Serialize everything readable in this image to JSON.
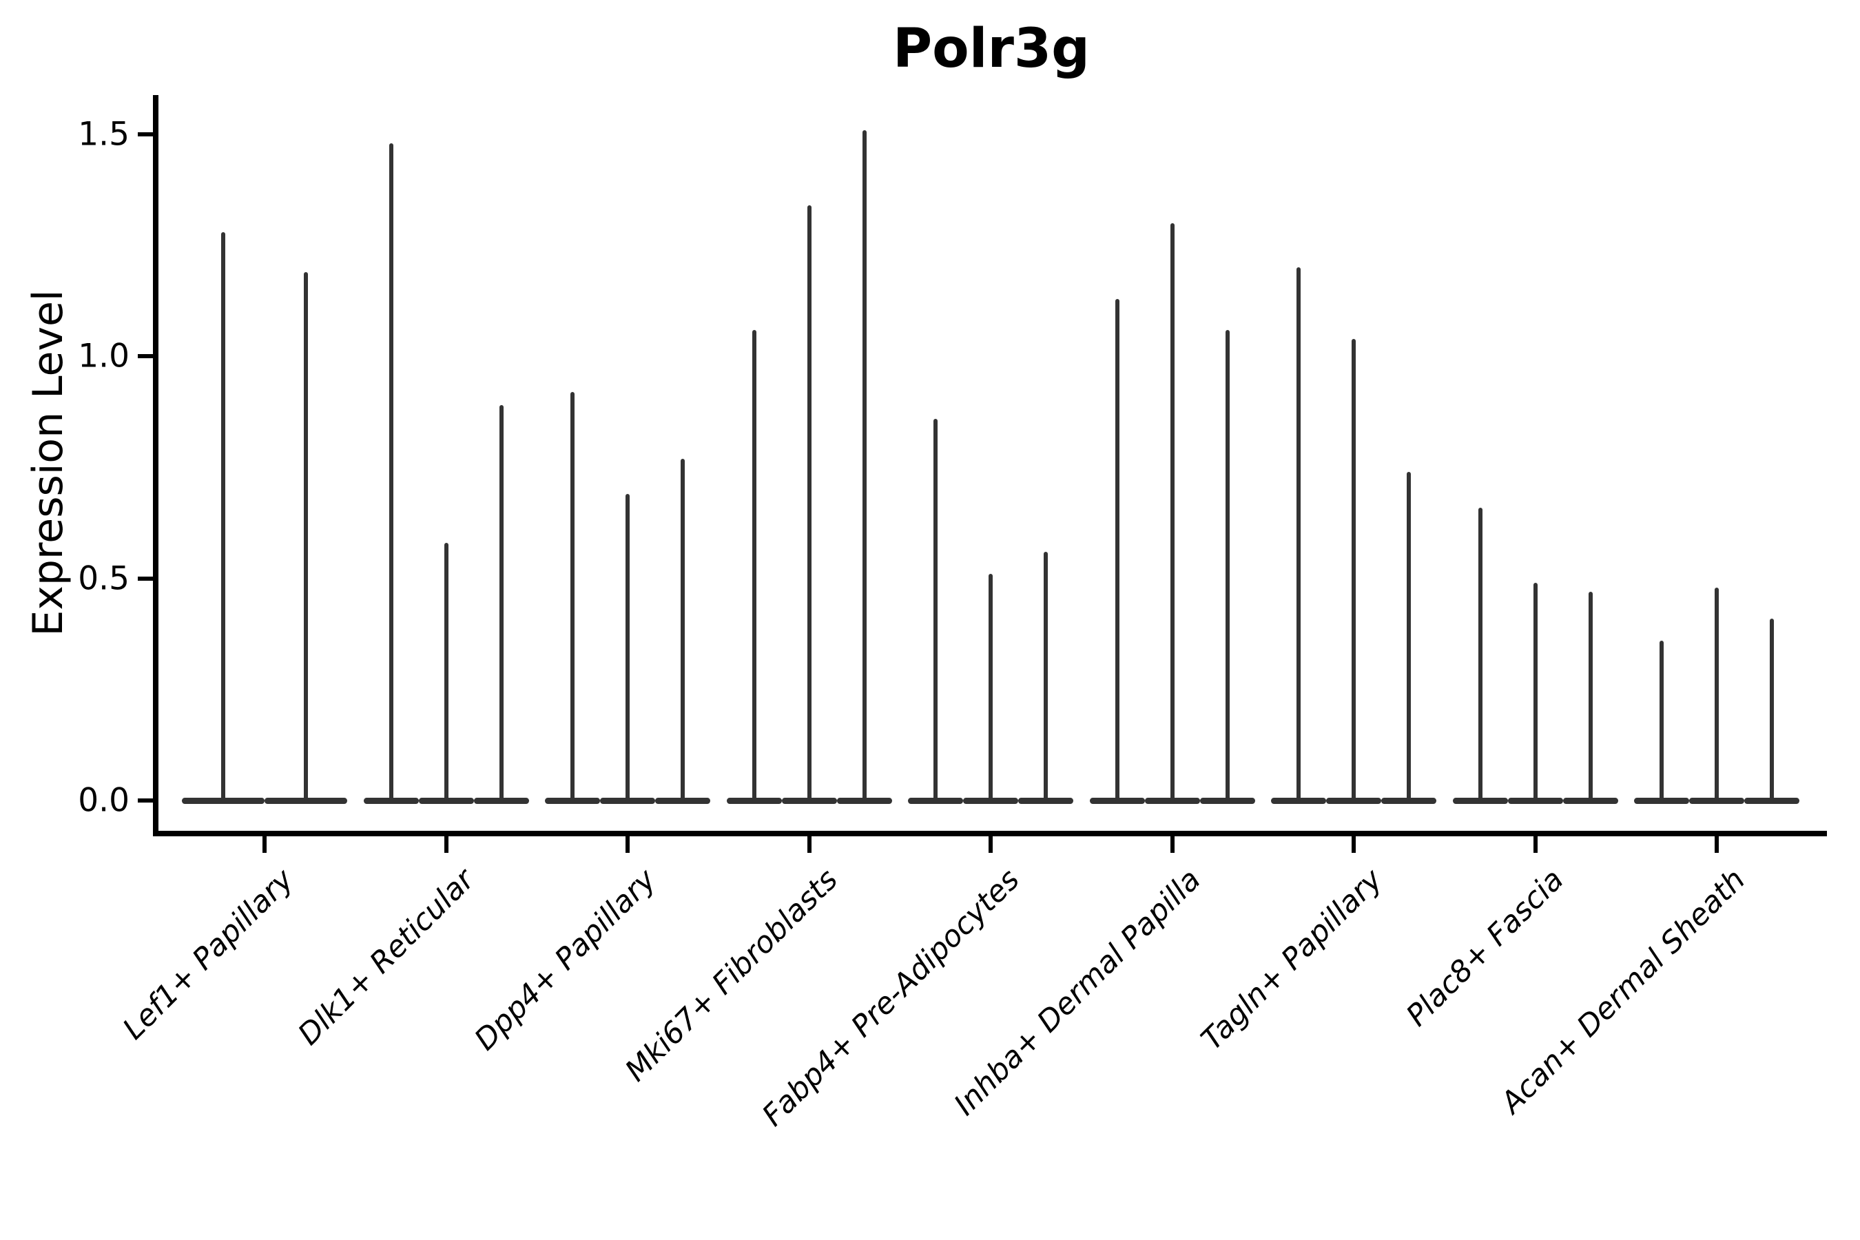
{
  "chart_data": {
    "type": "violin",
    "title": "Polr3g",
    "xlabel": "",
    "ylabel": "Expression Level",
    "ytick_values": [
      0.0,
      0.5,
      1.0,
      1.5
    ],
    "ylim": [
      0,
      1.57
    ],
    "grid": false,
    "legend": "none",
    "style_note": "Seurat-style stacked-violin spikes: wide flat base at 0 with a thin vertical spike to the maximum expression value; 3 violins per cluster (2 in first cluster)",
    "violin_color": "#333333",
    "axis_color": "#000000",
    "groups": [
      {
        "label": "Lef1+ Papillary",
        "violin_maxima": [
          1.28,
          1.19
        ]
      },
      {
        "label": "Dlk1+ Reticular",
        "violin_maxima": [
          1.48,
          0.58,
          0.89
        ]
      },
      {
        "label": "Dpp4+ Papillary",
        "violin_maxima": [
          0.92,
          0.69,
          0.77
        ]
      },
      {
        "label": "Mki67+ Fibroblasts",
        "violin_maxima": [
          1.06,
          1.34,
          1.51
        ]
      },
      {
        "label": "Fabp4+ Pre-Adipocytes",
        "violin_maxima": [
          0.86,
          0.51,
          0.56
        ]
      },
      {
        "label": "Inhba+ Dermal Papilla",
        "violin_maxima": [
          1.13,
          1.3,
          1.06
        ]
      },
      {
        "label": "Tagln+ Papillary",
        "violin_maxima": [
          1.2,
          1.04,
          0.74
        ]
      },
      {
        "label": "Plac8+ Fascia",
        "violin_maxima": [
          0.66,
          0.49,
          0.47
        ]
      },
      {
        "label": "Acan+ Dermal Sheath",
        "violin_maxima": [
          0.36,
          0.48,
          0.41
        ]
      }
    ]
  }
}
